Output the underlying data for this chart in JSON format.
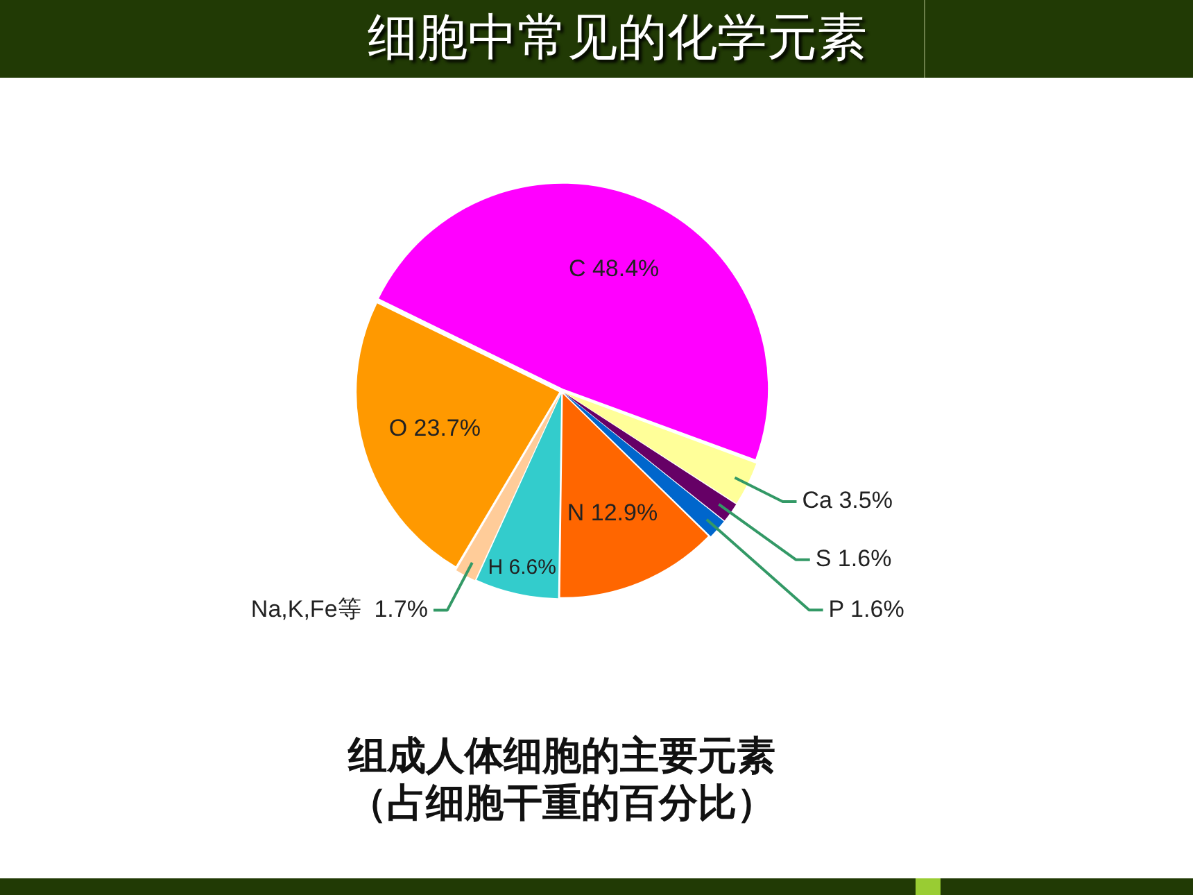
{
  "chart_data": {
    "type": "pie",
    "title": "细胞中常见的化学元素",
    "categories": [
      "C",
      "Ca",
      "S",
      "P",
      "N",
      "H",
      "Na,K,Fe等",
      "O"
    ],
    "values": [
      48.4,
      3.5,
      1.6,
      1.6,
      12.9,
      6.6,
      1.7,
      23.7
    ],
    "colors": [
      "#ff00ff",
      "#ffff99",
      "#660066",
      "#0066cc",
      "#ff6600",
      "#33cccc",
      "#ffcc99",
      "#ff9900"
    ],
    "value_labels": [
      "48.4%",
      "3.5%",
      "1.6%",
      "1.6%",
      "12.9%",
      "6.6%",
      "1.7%",
      "23.7%"
    ],
    "annotations": [
      "组成人体细胞的主要元素",
      "（占细胞干重的百分比）"
    ]
  }
}
